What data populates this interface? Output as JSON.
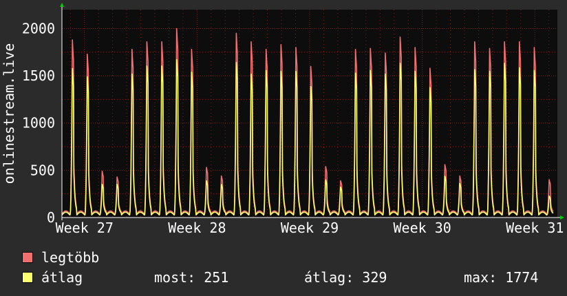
{
  "chart_data": {
    "type": "line",
    "ylabel": "onlinestream.live",
    "ylim": [
      0,
      2200
    ],
    "yticks": [
      0,
      500,
      1000,
      1500,
      2000
    ],
    "xlim": [
      26.8,
      31.2
    ],
    "xticks": [
      {
        "value": 27,
        "label": "Week 27"
      },
      {
        "value": 28,
        "label": "Week 28"
      },
      {
        "value": 29,
        "label": "Week 29"
      },
      {
        "value": 30,
        "label": "Week 30"
      },
      {
        "value": 31,
        "label": "Week 31"
      }
    ],
    "grid": true,
    "legend_placement": "bottom-left",
    "colors": {
      "background": "#2b2b2b",
      "plot_bg": "#0d0d0d",
      "grid": "#8b1a1a",
      "axis_arrow": "#00cc00",
      "max_series": "#f07070",
      "avg_series": "#ffff70"
    },
    "series": [
      {
        "name": "legtöbb",
        "daily_peaks": [
          1880,
          1730,
          490,
          430,
          1780,
          1860,
          1860,
          2000,
          1780,
          530,
          440,
          1950,
          1860,
          1780,
          1830,
          1800,
          1600,
          540,
          390,
          1780,
          1790,
          1740,
          1910,
          1800,
          1580,
          560,
          440,
          1860,
          1790,
          1860,
          1860,
          1800,
          400
        ]
      },
      {
        "name": "átlag",
        "daily_peaks": [
          1670,
          1580,
          380,
          380,
          1610,
          1700,
          1700,
          1770,
          1630,
          420,
          380,
          1740,
          1610,
          1650,
          1640,
          1640,
          1470,
          430,
          350,
          1620,
          1650,
          1610,
          1730,
          1640,
          1460,
          470,
          390,
          1660,
          1640,
          1730,
          1680,
          1650,
          250
        ]
      }
    ]
  },
  "legend": {
    "max_label": "legtöbb",
    "avg_label": "átlag",
    "most": "most: 251",
    "avg_value": "átlag: 329",
    "max_value": "max: 1774"
  }
}
